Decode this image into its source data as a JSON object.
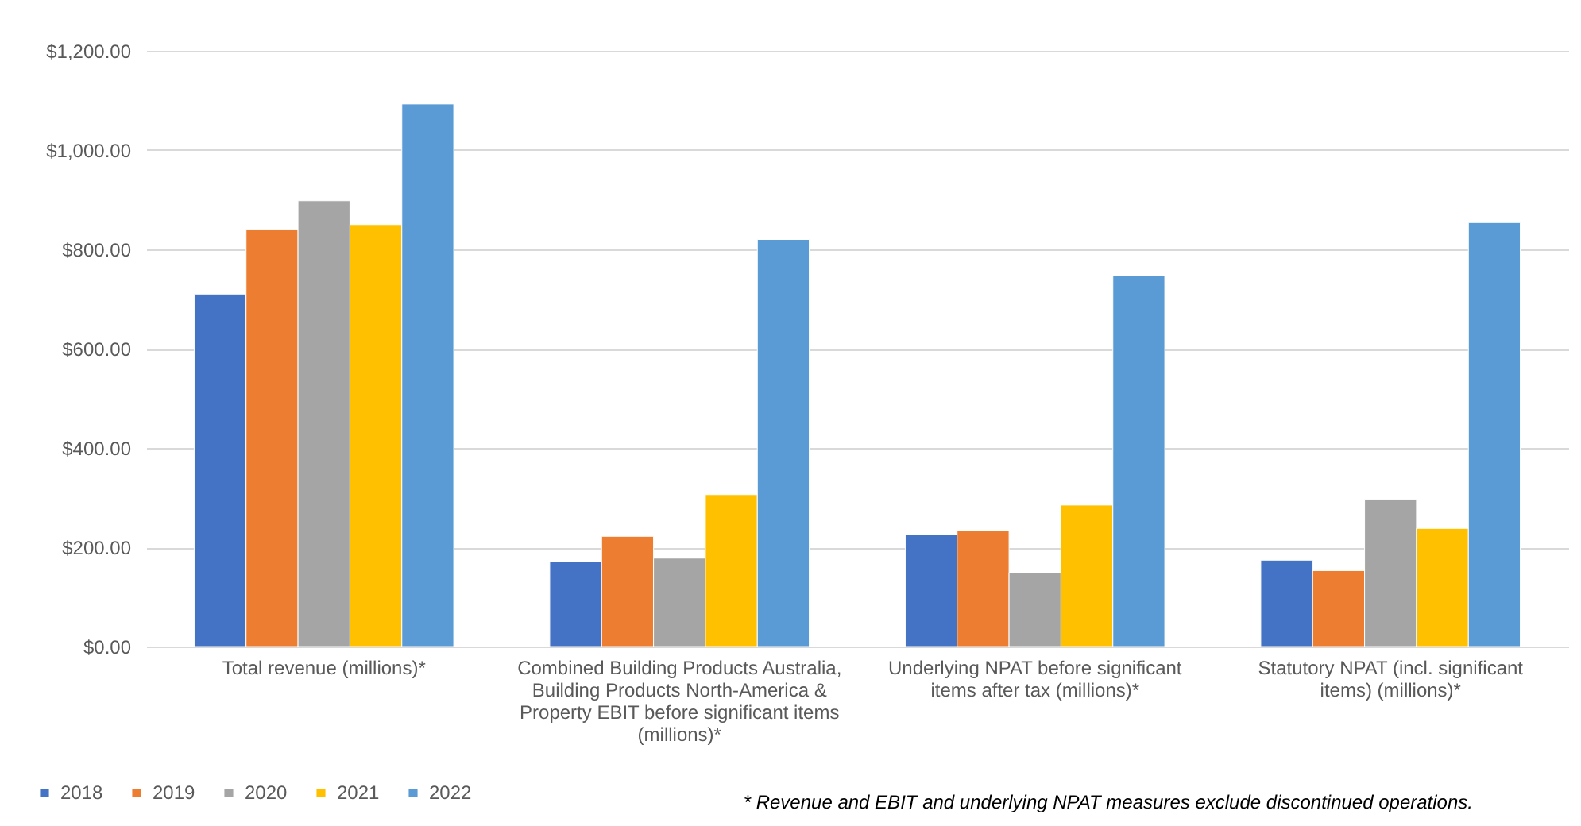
{
  "chart_data": {
    "type": "bar",
    "categories": [
      "Total revenue (millions)*",
      "Combined Building Products Australia, Building Products North-America & Property EBIT before significant items (millions)*",
      "Underlying NPAT before significant items after tax (millions)*",
      "Statutory NPAT (incl. significant items) (millions)*"
    ],
    "series": [
      {
        "name": "2018",
        "color": "#4472c4",
        "values": [
          710,
          171,
          225,
          174
        ]
      },
      {
        "name": "2019",
        "color": "#ed7d31",
        "values": [
          841,
          222,
          233,
          153
        ]
      },
      {
        "name": "2020",
        "color": "#a5a5a5",
        "values": [
          898,
          178,
          149,
          297
        ]
      },
      {
        "name": "2021",
        "color": "#ffc000",
        "values": [
          850,
          306,
          285,
          238
        ]
      },
      {
        "name": "2022",
        "color": "#5b9bd5",
        "values": [
          1093,
          820,
          747,
          854
        ]
      }
    ],
    "ylim": [
      0,
      1200
    ],
    "yticks": [
      {
        "value": 0,
        "label": "$0.00"
      },
      {
        "value": 200,
        "label": "$200.00"
      },
      {
        "value": 400,
        "label": "$400.00"
      },
      {
        "value": 600,
        "label": "$600.00"
      },
      {
        "value": 800,
        "label": "$800.00"
      },
      {
        "value": 1000,
        "label": "$1,000.00"
      },
      {
        "value": 1200,
        "label": "$1,200.00"
      }
    ],
    "grid": "y",
    "legend": "bottom left",
    "annotations": [
      "* Revenue and EBIT and underlying NPAT measures exclude discontinued operations."
    ]
  }
}
